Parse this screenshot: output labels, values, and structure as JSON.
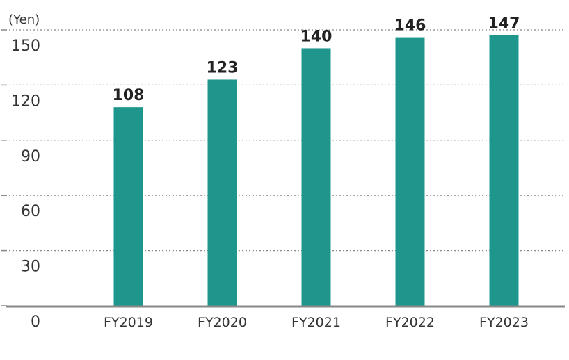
{
  "chart_data": {
    "type": "bar",
    "y_label": "(Yen)",
    "categories": [
      "FY2019",
      "FY2020",
      "FY2021",
      "FY2022",
      "FY2023"
    ],
    "values": [
      108,
      123,
      140,
      146,
      147
    ],
    "color": "#1e968c",
    "ylim": [
      0,
      150
    ],
    "yticks": [
      0,
      30,
      60,
      90,
      120,
      150
    ],
    "grid": true
  }
}
